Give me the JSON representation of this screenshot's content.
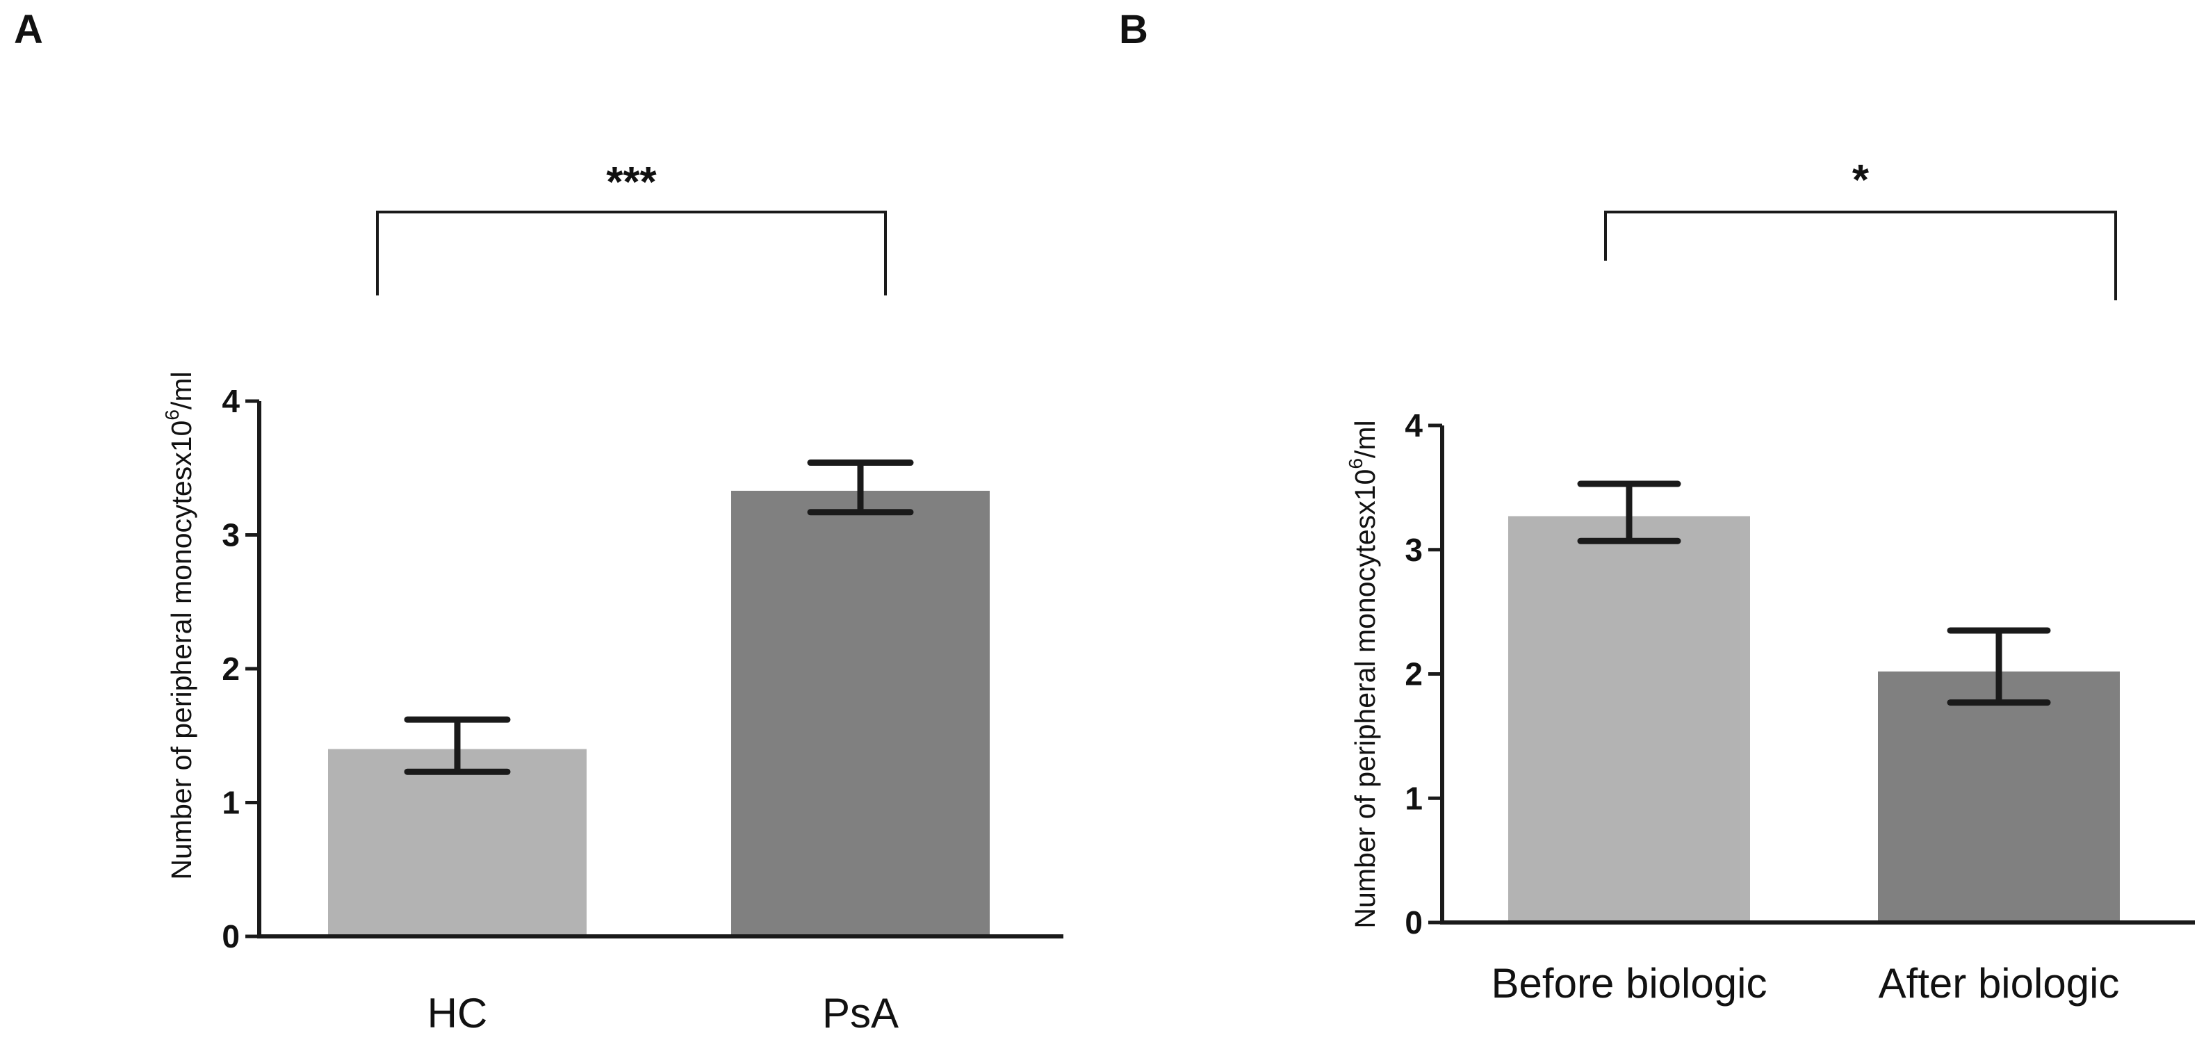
{
  "chart_data": [
    {
      "type": "bar",
      "panel": "A",
      "categories": [
        "HC",
        "PsA"
      ],
      "values": [
        1.4,
        3.33
      ],
      "error_upper": [
        1.62,
        3.54
      ],
      "error_lower": [
        1.23,
        3.17
      ],
      "colors": [
        "#b3b3b3",
        "#808080"
      ],
      "ylabel": "Number of peripheral monocytesx10^6/ml",
      "ylabel_base": "Number of peripheral monocytesx10",
      "ylabel_sup": "6",
      "ylabel_tail": "/ml",
      "ylim": [
        0,
        4
      ],
      "yticks": [
        "0",
        "1",
        "2",
        "3",
        "4"
      ],
      "significance": "***"
    },
    {
      "type": "bar",
      "panel": "B",
      "categories": [
        "Before biologic",
        "After biologic"
      ],
      "values": [
        3.27,
        2.02
      ],
      "error_upper": [
        3.53,
        2.35
      ],
      "error_lower": [
        3.07,
        1.77
      ],
      "colors": [
        "#b3b3b3",
        "#808080"
      ],
      "ylabel": "Number of peripheral monocytesx10^6/ml",
      "ylabel_base": "Number of peripheral monocytesx10",
      "ylabel_sup": "6",
      "ylabel_tail": "/ml",
      "ylim": [
        0,
        4
      ],
      "yticks": [
        "0",
        "1",
        "2",
        "3",
        "4"
      ],
      "significance": "*"
    }
  ]
}
